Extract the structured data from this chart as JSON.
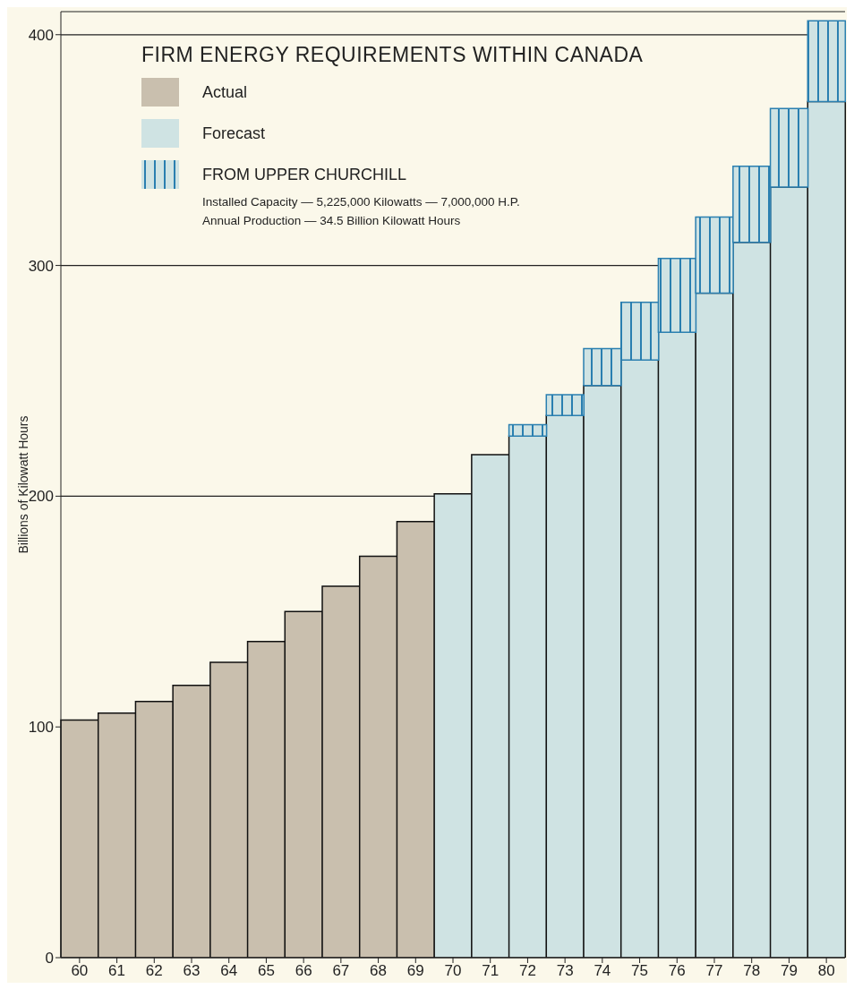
{
  "chart_data": {
    "type": "bar",
    "title": "FIRM ENERGY REQUIREMENTS WITHIN CANADA",
    "ylabel": "Billions of Kilowatt Hours",
    "categories": [
      "60",
      "61",
      "62",
      "63",
      "64",
      "65",
      "66",
      "67",
      "68",
      "69",
      "70",
      "71",
      "72",
      "73",
      "74",
      "75",
      "76",
      "77",
      "78",
      "79",
      "80"
    ],
    "stacked": true,
    "series": [
      {
        "name": "Actual",
        "color": "#c9bfae",
        "values": [
          103,
          106,
          111,
          118,
          128,
          137,
          150,
          161,
          174,
          189,
          null,
          null,
          null,
          null,
          null,
          null,
          null,
          null,
          null,
          null,
          null
        ]
      },
      {
        "name": "Forecast",
        "color": "#cfe3e3",
        "values": [
          null,
          null,
          null,
          null,
          null,
          null,
          null,
          null,
          null,
          null,
          201,
          218,
          226,
          235,
          248,
          259,
          271,
          288,
          310,
          334,
          371
        ]
      },
      {
        "name": "FROM UPPER CHURCHILL",
        "color": "#2a7fb0",
        "values": [
          null,
          null,
          null,
          null,
          null,
          null,
          null,
          null,
          null,
          null,
          null,
          null,
          5,
          9,
          16,
          25,
          32,
          33,
          33,
          34,
          35
        ]
      }
    ],
    "annotations": [
      "Installed Capacity — 5,225,000 Kilowatts — 7,000,000 H.P.",
      "Annual Production — 34.5 Billion Kilowatt Hours"
    ],
    "ylim": [
      0,
      410
    ],
    "yticks": [
      0,
      100,
      200,
      300,
      400
    ],
    "grid": "y",
    "legend": "top left"
  }
}
